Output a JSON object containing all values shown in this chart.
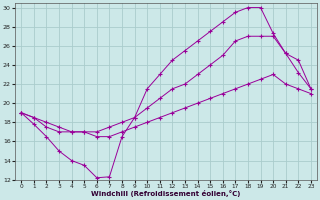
{
  "xlabel": "Windchill (Refroidissement éolien,°C)",
  "bg_color": "#cce8e8",
  "line_color": "#990099",
  "grid_color": "#aacccc",
  "xlim": [
    -0.5,
    23.5
  ],
  "ylim": [
    12,
    30.5
  ],
  "xticks": [
    0,
    1,
    2,
    3,
    4,
    5,
    6,
    7,
    8,
    9,
    10,
    11,
    12,
    13,
    14,
    15,
    16,
    17,
    18,
    19,
    20,
    21,
    22,
    23
  ],
  "yticks": [
    12,
    14,
    16,
    18,
    20,
    22,
    24,
    26,
    28,
    30
  ],
  "series": [
    {
      "x": [
        0,
        1,
        2,
        3,
        4,
        5,
        6,
        7,
        8,
        9,
        10,
        11,
        12,
        13,
        14,
        15,
        16,
        17,
        18,
        19,
        20,
        21,
        22,
        23
      ],
      "y": [
        19,
        17.8,
        16.5,
        15,
        14,
        13.5,
        12.2,
        12.3,
        16.5,
        18.5,
        21.5,
        23,
        24.5,
        25.5,
        26.5,
        27.5,
        28.5,
        29.5,
        30,
        30,
        27.3,
        25.2,
        23.2,
        21.5
      ]
    },
    {
      "x": [
        0,
        1,
        2,
        3,
        4,
        5,
        6,
        7,
        8,
        9,
        10,
        11,
        12,
        13,
        14,
        15,
        16,
        17,
        18,
        19,
        20,
        21,
        22,
        23
      ],
      "y": [
        19,
        18.5,
        17.5,
        17.0,
        17.0,
        17.0,
        17.0,
        17.5,
        18.0,
        18.5,
        19.5,
        20.5,
        21.5,
        22.0,
        23.0,
        24.0,
        25.0,
        26.5,
        27.0,
        27.0,
        27.0,
        25.2,
        24.5,
        21.5
      ]
    },
    {
      "x": [
        0,
        1,
        2,
        3,
        4,
        5,
        6,
        7,
        8,
        9,
        10,
        11,
        12,
        13,
        14,
        15,
        16,
        17,
        18,
        19,
        20,
        21,
        22,
        23
      ],
      "y": [
        19.0,
        18.5,
        18.0,
        17.5,
        17.0,
        17.0,
        16.5,
        16.5,
        17.0,
        17.5,
        18.0,
        18.5,
        19.0,
        19.5,
        20.0,
        20.5,
        21.0,
        21.5,
        22.0,
        22.5,
        23.0,
        22.0,
        21.5,
        21.0
      ]
    }
  ]
}
